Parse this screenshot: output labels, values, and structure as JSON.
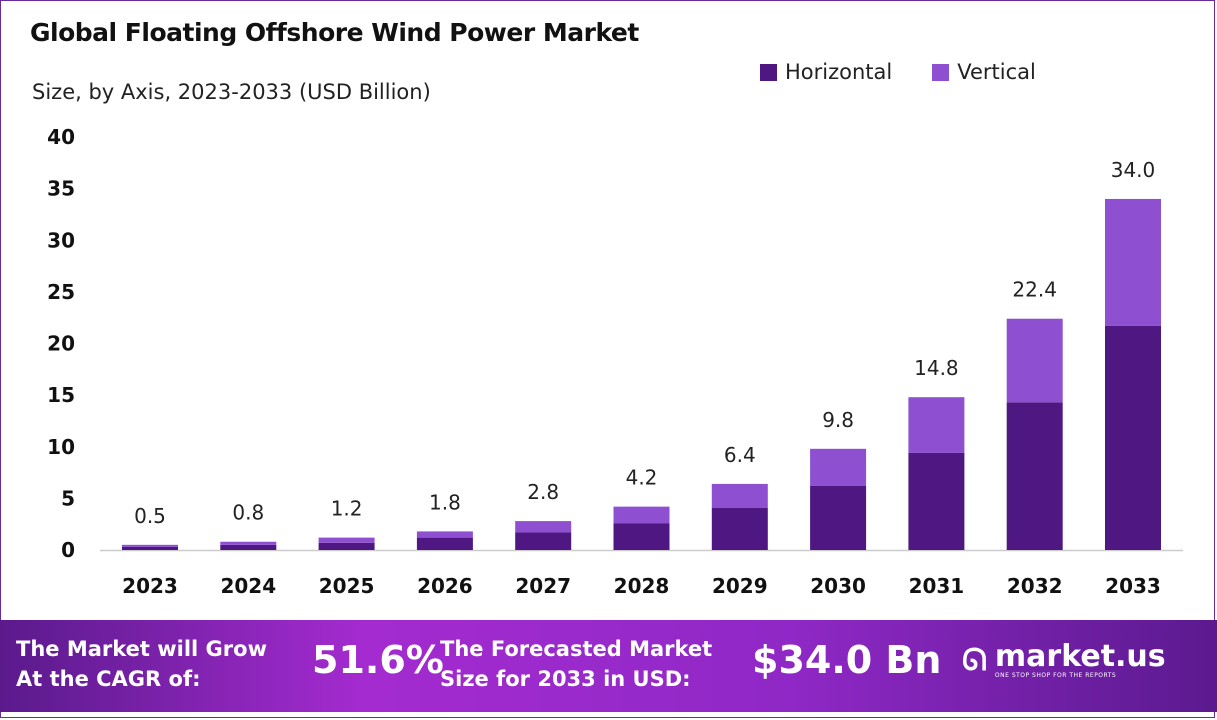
{
  "chart_data": {
    "type": "bar",
    "stacked": true,
    "title": "Global Floating Offshore Wind Power Market",
    "subtitle": "Size, by Axis, 2023-2033 (USD Billion)",
    "categories": [
      "2023",
      "2024",
      "2025",
      "2026",
      "2027",
      "2028",
      "2029",
      "2030",
      "2031",
      "2032",
      "2033"
    ],
    "series": [
      {
        "name": "Horizontal",
        "color": "#4f1782",
        "values": [
          0.3,
          0.5,
          0.7,
          1.2,
          1.7,
          2.6,
          4.1,
          6.2,
          9.4,
          14.3,
          21.7
        ]
      },
      {
        "name": "Vertical",
        "color": "#8e4fd1",
        "values": [
          0.2,
          0.3,
          0.5,
          0.6,
          1.1,
          1.6,
          2.3,
          3.6,
          5.4,
          8.1,
          12.3
        ]
      }
    ],
    "totals": [
      "0.5",
      "0.8",
      "1.2",
      "1.8",
      "2.8",
      "4.2",
      "6.4",
      "9.8",
      "14.8",
      "22.4",
      "34.0"
    ],
    "yticks": [
      "0",
      "5",
      "10",
      "15",
      "20",
      "25",
      "30",
      "35",
      "40"
    ],
    "ylim": [
      0,
      40
    ],
    "grid": false,
    "legend_position": "top-right"
  },
  "footer": {
    "cagr_label_line1": "The Market will Grow",
    "cagr_label_line2": "At the CAGR of:",
    "cagr_value": "51.6%",
    "forecast_label_line1": "The Forecasted Market",
    "forecast_label_line2": "Size for 2033 in USD:",
    "forecast_value": "$34.0 Bn",
    "logo_name": "market.us",
    "logo_tagline": "ONE STOP SHOP FOR THE REPORTS"
  }
}
